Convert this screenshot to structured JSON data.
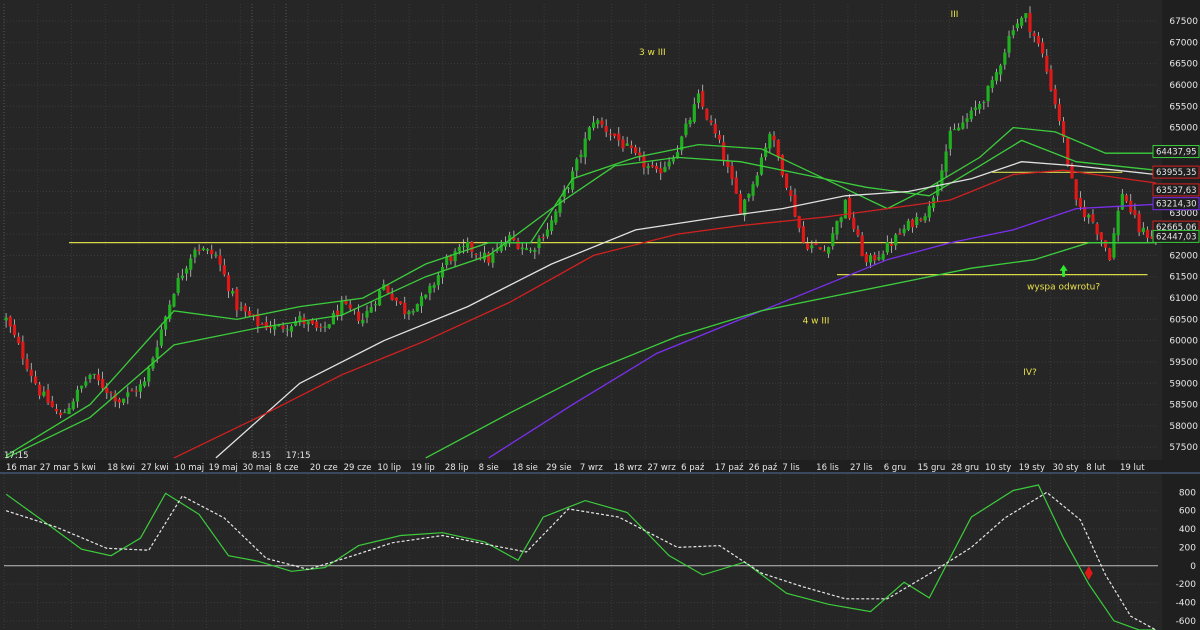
{
  "chart_data": [
    {
      "type": "candlestick",
      "panel": "price",
      "ylim": [
        57200,
        67900
      ],
      "y_ticks": [
        57500,
        58000,
        58500,
        59000,
        59500,
        60000,
        60500,
        61000,
        61500,
        62000,
        62500,
        63000,
        63500,
        64000,
        64500,
        65000,
        65500,
        66000,
        66500,
        67000,
        67500
      ],
      "x_tick_labels": [
        "16 mar",
        "27 mar",
        "5 kwi",
        "18 kwi",
        "27 kwi",
        "10 maj",
        "19 maj",
        "30 maj",
        "8 cze",
        "20 cze",
        "29 cze",
        "10 lip",
        "19 lip",
        "28 lip",
        "8 sie",
        "18 sie",
        "29 sie",
        "7 wrz",
        "18 wrz",
        "27 wrz",
        "6 paź",
        "17 paź",
        "26 paź",
        "7 lis",
        "16 lis",
        "27 lis",
        "6 gru",
        "15 gru",
        "28 gru",
        "10 sty",
        "19 sty",
        "30 sty",
        "8 lut",
        "19 lut"
      ],
      "time_labels": [
        "17:15",
        "8:15",
        "17:15"
      ],
      "price_path": [
        [
          0,
          60500
        ],
        [
          8,
          58800
        ],
        [
          13,
          58200
        ],
        [
          20,
          59200
        ],
        [
          27,
          58600
        ],
        [
          33,
          59000
        ],
        [
          40,
          61200
        ],
        [
          45,
          62200
        ],
        [
          50,
          62000
        ],
        [
          55,
          60800
        ],
        [
          60,
          60400
        ],
        [
          65,
          60300
        ],
        [
          70,
          60500
        ],
        [
          75,
          60200
        ],
        [
          80,
          60800
        ],
        [
          85,
          60500
        ],
        [
          90,
          61300
        ],
        [
          95,
          60700
        ],
        [
          100,
          61000
        ],
        [
          105,
          61900
        ],
        [
          110,
          62200
        ],
        [
          115,
          61900
        ],
        [
          120,
          62400
        ],
        [
          125,
          62100
        ],
        [
          130,
          62800
        ],
        [
          135,
          63900
        ],
        [
          140,
          65200
        ],
        [
          145,
          64800
        ],
        [
          150,
          64300
        ],
        [
          155,
          63900
        ],
        [
          160,
          64500
        ],
        [
          165,
          65700
        ],
        [
          170,
          64600
        ],
        [
          175,
          63100
        ],
        [
          178,
          63700
        ],
        [
          182,
          64900
        ],
        [
          186,
          63700
        ],
        [
          190,
          62300
        ],
        [
          195,
          62100
        ],
        [
          200,
          63200
        ],
        [
          205,
          61800
        ],
        [
          210,
          62200
        ],
        [
          215,
          62700
        ],
        [
          220,
          63100
        ],
        [
          225,
          64800
        ],
        [
          230,
          65300
        ],
        [
          235,
          66000
        ],
        [
          240,
          67400
        ],
        [
          243,
          67600
        ],
        [
          247,
          66700
        ],
        [
          251,
          65200
        ],
        [
          255,
          63200
        ],
        [
          259,
          62800
        ],
        [
          263,
          62000
        ],
        [
          266,
          63500
        ],
        [
          270,
          62600
        ],
        [
          274,
          62400
        ]
      ],
      "series": [
        {
          "name": "",
          "color": "#3ccd3c",
          "values": [
            [
              0,
              57300
            ],
            [
              20,
              58500
            ],
            [
              40,
              60700
            ],
            [
              55,
              60500
            ],
            [
              70,
              60800
            ],
            [
              85,
              61000
            ],
            [
              100,
              61800
            ],
            [
              115,
              62300
            ],
            [
              125,
              62300
            ],
            [
              135,
              63800
            ],
            [
              150,
              64300
            ],
            [
              165,
              64600
            ],
            [
              180,
              64500
            ],
            [
              195,
              63800
            ],
            [
              210,
              63100
            ],
            [
              220,
              63600
            ],
            [
              232,
              64300
            ],
            [
              240,
              65000
            ],
            [
              250,
              64900
            ],
            [
              262,
              64400
            ],
            [
              274,
              64400
            ]
          ]
        },
        {
          "name": "",
          "color": "#3ccd3c",
          "values": [
            [
              0,
              57250
            ],
            [
              20,
              58200
            ],
            [
              40,
              59900
            ],
            [
              60,
              60300
            ],
            [
              80,
              60600
            ],
            [
              100,
              61500
            ],
            [
              115,
              62000
            ],
            [
              130,
              63100
            ],
            [
              145,
              64100
            ],
            [
              160,
              64300
            ],
            [
              175,
              64200
            ],
            [
              190,
              63900
            ],
            [
              205,
              63600
            ],
            [
              220,
              63400
            ],
            [
              232,
              64100
            ],
            [
              242,
              64700
            ],
            [
              255,
              64200
            ],
            [
              274,
              64000
            ]
          ]
        },
        {
          "name": "",
          "color": "#e0e0e0",
          "values": [
            [
              50,
              57250
            ],
            [
              70,
              59000
            ],
            [
              90,
              60000
            ],
            [
              110,
              60800
            ],
            [
              130,
              61800
            ],
            [
              150,
              62600
            ],
            [
              170,
              62900
            ],
            [
              185,
              63100
            ],
            [
              200,
              63400
            ],
            [
              215,
              63500
            ],
            [
              230,
              63800
            ],
            [
              242,
              64200
            ],
            [
              255,
              64100
            ],
            [
              274,
              63900
            ]
          ]
        },
        {
          "name": "",
          "color": "#d22020",
          "values": [
            [
              40,
              57250
            ],
            [
              60,
              58200
            ],
            [
              80,
              59200
            ],
            [
              100,
              60000
            ],
            [
              120,
              60900
            ],
            [
              140,
              62000
            ],
            [
              160,
              62500
            ],
            [
              175,
              62700
            ],
            [
              195,
              62900
            ],
            [
              210,
              63100
            ],
            [
              225,
              63300
            ],
            [
              240,
              63900
            ],
            [
              252,
              64000
            ],
            [
              274,
              63700
            ]
          ]
        },
        {
          "name": "",
          "color": "#7b2ff0",
          "values": [
            [
              115,
              57250
            ],
            [
              135,
              58500
            ],
            [
              155,
              59700
            ],
            [
              175,
              60500
            ],
            [
              195,
              61300
            ],
            [
              210,
              61900
            ],
            [
              225,
              62300
            ],
            [
              240,
              62600
            ],
            [
              255,
              63100
            ],
            [
              274,
              63200
            ]
          ]
        },
        {
          "name": "",
          "color": "#3ccd3c",
          "values": [
            [
              100,
              57250
            ],
            [
              120,
              58300
            ],
            [
              140,
              59300
            ],
            [
              160,
              60100
            ],
            [
              180,
              60700
            ],
            [
              200,
              61100
            ],
            [
              215,
              61400
            ],
            [
              230,
              61700
            ],
            [
              245,
              61900
            ],
            [
              258,
              62300
            ],
            [
              274,
              62300
            ]
          ]
        }
      ],
      "horizontal_lines": [
        {
          "value": 62300,
          "color": "#d8d84a",
          "from_bar": 15,
          "to_bar": 272
        },
        {
          "value": 61550,
          "color": "#d8d84a",
          "from_bar": 198,
          "to_bar": 272
        },
        {
          "value": 63950,
          "color": "#d8d84a",
          "from_bar": 235,
          "to_bar": 266
        }
      ],
      "price_badges": [
        {
          "label": "64437,95",
          "value": 64437.95,
          "color": "#3ccd3c"
        },
        {
          "label": "63955,35",
          "value": 63955.35,
          "color": "#d22020"
        },
        {
          "label": "63537,63",
          "value": 63537.63,
          "color": "#d22020"
        },
        {
          "label": "63214,30",
          "value": 63214.3,
          "color": "#7b2ff0"
        },
        {
          "label": "62665,06",
          "value": 62665.06,
          "color": "#d22020"
        },
        {
          "label": "62447,03",
          "value": 62447.03,
          "color": "#3ccd3c"
        }
      ],
      "annotations": [
        {
          "text": "III",
          "bar": 226,
          "value": 67600,
          "color": "#e8e04a"
        },
        {
          "text": "3 w III",
          "bar": 154,
          "value": 66700,
          "color": "#e8e04a"
        },
        {
          "text": "4 w III",
          "bar": 193,
          "value": 60400,
          "color": "#e8e04a"
        },
        {
          "text": "IV?",
          "bar": 244,
          "value": 59200,
          "color": "#e8e04a"
        },
        {
          "text": "wyspa odwrotu?",
          "bar": 252,
          "value": 61200,
          "color": "#3cdc3c"
        }
      ]
    },
    {
      "type": "line",
      "panel": "oscillator",
      "ylim": [
        -700,
        1000
      ],
      "y_ticks": [
        800,
        600,
        400,
        200,
        0,
        -200,
        -400,
        -600
      ],
      "series": [
        {
          "name": "",
          "color": "#3ccd3c",
          "values": [
            [
              0,
              780
            ],
            [
              10,
              450
            ],
            [
              18,
              180
            ],
            [
              25,
              110
            ],
            [
              32,
              300
            ],
            [
              38,
              790
            ],
            [
              46,
              560
            ],
            [
              53,
              110
            ],
            [
              60,
              50
            ],
            [
              68,
              -60
            ],
            [
              76,
              -20
            ],
            [
              84,
              220
            ],
            [
              94,
              330
            ],
            [
              104,
              360
            ],
            [
              114,
              260
            ],
            [
              122,
              60
            ],
            [
              128,
              530
            ],
            [
              138,
              710
            ],
            [
              148,
              580
            ],
            [
              158,
              110
            ],
            [
              166,
              -100
            ],
            [
              176,
              40
            ],
            [
              186,
              -300
            ],
            [
              196,
              -420
            ],
            [
              206,
              -500
            ],
            [
              214,
              -180
            ],
            [
              220,
              -350
            ],
            [
              230,
              530
            ],
            [
              240,
              820
            ],
            [
              246,
              880
            ],
            [
              252,
              300
            ],
            [
              258,
              -200
            ],
            [
              264,
              -600
            ],
            [
              270,
              -800
            ],
            [
              274,
              -850
            ]
          ]
        },
        {
          "name": "",
          "color": "#e6e6e6",
          "values": [
            [
              0,
              600
            ],
            [
              12,
              420
            ],
            [
              24,
              190
            ],
            [
              34,
              170
            ],
            [
              42,
              760
            ],
            [
              52,
              520
            ],
            [
              62,
              80
            ],
            [
              72,
              -40
            ],
            [
              82,
              100
            ],
            [
              92,
              250
            ],
            [
              104,
              330
            ],
            [
              116,
              220
            ],
            [
              124,
              150
            ],
            [
              134,
              620
            ],
            [
              146,
              530
            ],
            [
              160,
              200
            ],
            [
              170,
              220
            ],
            [
              180,
              -80
            ],
            [
              190,
              -230
            ],
            [
              200,
              -360
            ],
            [
              210,
              -360
            ],
            [
              220,
              -90
            ],
            [
              230,
              200
            ],
            [
              238,
              520
            ],
            [
              248,
              800
            ],
            [
              256,
              500
            ],
            [
              262,
              -100
            ],
            [
              268,
              -550
            ],
            [
              274,
              -700
            ]
          ]
        }
      ],
      "zero_line": 0,
      "markers": [
        {
          "shape": "diamond",
          "bar": 258,
          "value": -80,
          "color": "#e01818"
        }
      ]
    }
  ]
}
